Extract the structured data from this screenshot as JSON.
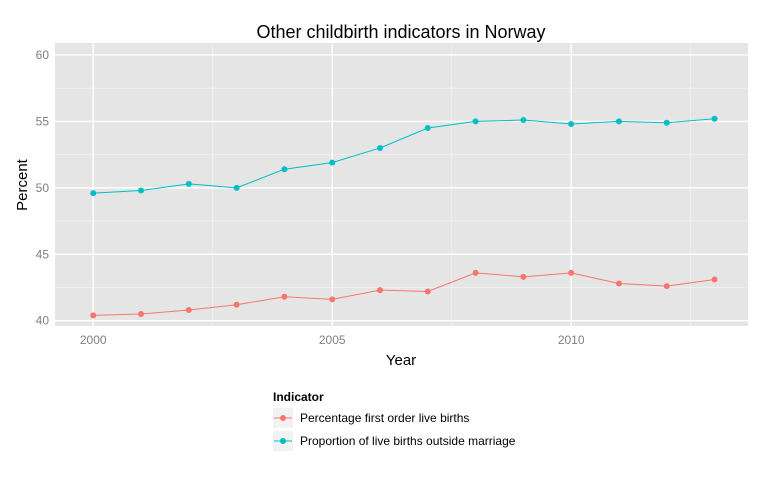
{
  "chart_data": {
    "type": "line",
    "title": "Other childbirth indicators in Norway",
    "xlabel": "Year",
    "ylabel": "Percent",
    "x": [
      2000,
      2001,
      2002,
      2003,
      2004,
      2005,
      2006,
      2007,
      2008,
      2009,
      2010,
      2011,
      2012,
      2013
    ],
    "xlim": [
      1999.2,
      2013.7
    ],
    "ylim": [
      39.6,
      60.9
    ],
    "x_ticks": [
      2000,
      2005,
      2010
    ],
    "x_tick_labels": [
      "2000",
      "2005",
      "2010"
    ],
    "y_ticks": [
      40,
      45,
      50,
      55,
      60
    ],
    "y_tick_labels": [
      "40",
      "45",
      "50",
      "55",
      "60"
    ],
    "grid": true,
    "legend_placement": "bottom",
    "legend_title": "Indicator",
    "series": [
      {
        "name": "Percentage first order live births",
        "color": "#F8766D",
        "values": [
          40.4,
          40.5,
          40.8,
          41.2,
          41.8,
          41.6,
          42.3,
          42.2,
          43.6,
          43.3,
          43.6,
          42.8,
          42.6,
          43.1
        ]
      },
      {
        "name": "Proportion of live births outside marriage",
        "color": "#00BFC4",
        "values": [
          49.6,
          49.8,
          50.3,
          50.0,
          51.4,
          51.9,
          53.0,
          54.5,
          55.0,
          55.1,
          54.8,
          55.0,
          54.9,
          55.2
        ]
      }
    ]
  }
}
